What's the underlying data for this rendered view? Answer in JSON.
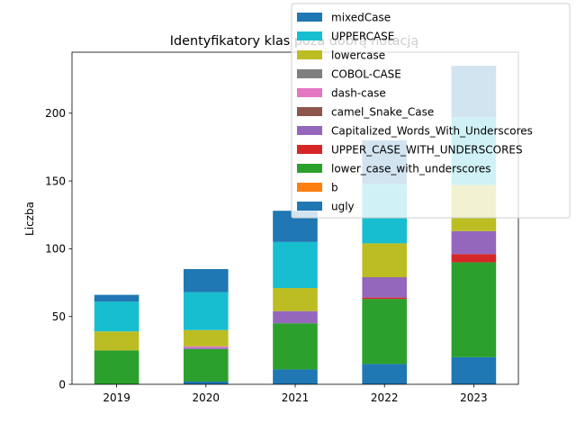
{
  "chart_data": {
    "type": "bar",
    "stacked": true,
    "title": "Identyfikatory klas poza dobrą notacją",
    "xlabel": "",
    "ylabel": "Liczba",
    "categories": [
      "2019",
      "2020",
      "2021",
      "2022",
      "2023"
    ],
    "ylim": [
      0,
      245
    ],
    "yticks": [
      0,
      50,
      100,
      150,
      200
    ],
    "legend_position": "top-right",
    "series": [
      {
        "name": "ugly",
        "color": "#1f77b4",
        "values": [
          0,
          2,
          11,
          15,
          20
        ]
      },
      {
        "name": "b",
        "color": "#ff7f0e",
        "values": [
          0,
          0,
          0,
          0,
          0
        ]
      },
      {
        "name": "lower_case_with_underscores",
        "color": "#2ca02c",
        "values": [
          25,
          24,
          34,
          48,
          70
        ]
      },
      {
        "name": "UPPER_CASE_WITH_UNDERSCORES",
        "color": "#d62728",
        "values": [
          0,
          0,
          0,
          1,
          6
        ]
      },
      {
        "name": "Capitalized_Words_With_Underscores",
        "color": "#9467bd",
        "values": [
          0,
          1,
          9,
          15,
          17
        ]
      },
      {
        "name": "camel_Snake_Case",
        "color": "#8c564b",
        "values": [
          0,
          0,
          0,
          0,
          0
        ]
      },
      {
        "name": "dash-case",
        "color": "#e377c2",
        "values": [
          0,
          1,
          0,
          0,
          0
        ]
      },
      {
        "name": "COBOL-CASE",
        "color": "#7f7f7f",
        "values": [
          0,
          0,
          0,
          0,
          0
        ]
      },
      {
        "name": "lowercase",
        "color": "#bcbd22",
        "values": [
          14,
          12,
          17,
          25,
          34
        ]
      },
      {
        "name": "UPPERCASE",
        "color": "#17becf",
        "values": [
          22,
          28,
          34,
          44,
          50
        ]
      },
      {
        "name": "mixedCase",
        "color": "#1f77b4",
        "values": [
          5,
          17,
          23,
          32,
          38
        ]
      }
    ]
  }
}
